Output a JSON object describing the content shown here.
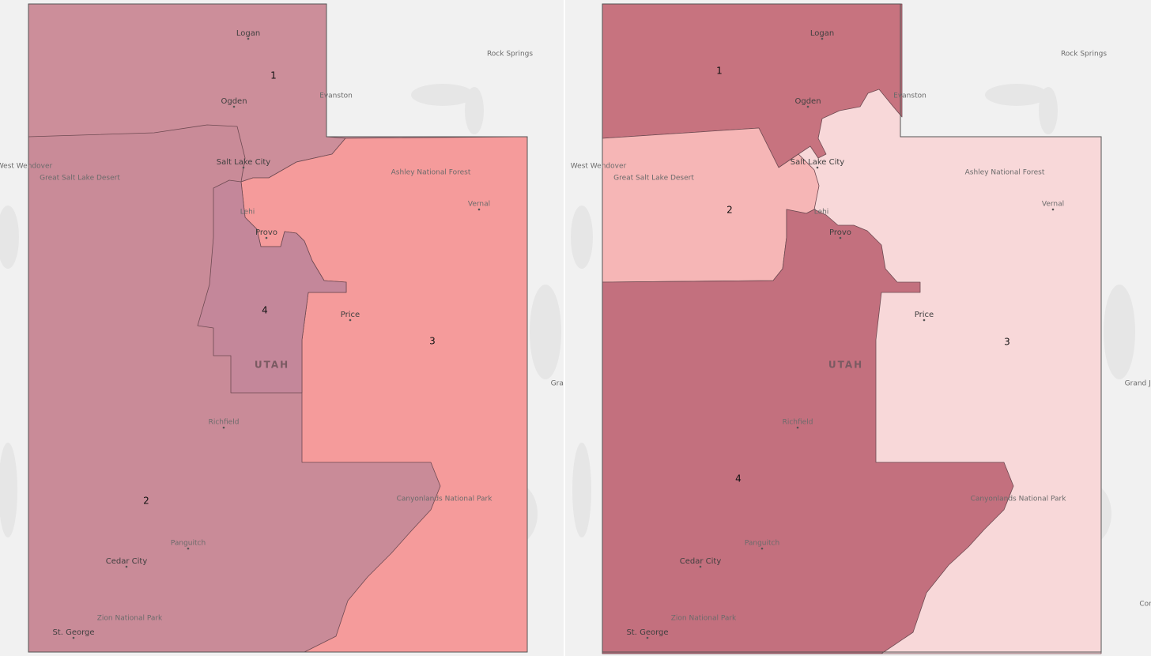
{
  "maps": [
    {
      "districts": [
        {
          "label": "1"
        },
        {
          "label": "2"
        },
        {
          "label": "3"
        },
        {
          "label": "4"
        }
      ],
      "state_label": "UTAH",
      "places": [
        {
          "name": "Logan"
        },
        {
          "name": "Ogden"
        },
        {
          "name": "Salt Lake City"
        },
        {
          "name": "Lehi"
        },
        {
          "name": "Provo"
        },
        {
          "name": "Price"
        },
        {
          "name": "Richfield"
        },
        {
          "name": "Panguitch"
        },
        {
          "name": "Cedar City"
        },
        {
          "name": "Zion National Park"
        },
        {
          "name": "St. George"
        },
        {
          "name": "Canyonlands National Park"
        },
        {
          "name": "Ashley National Forest"
        },
        {
          "name": "Vernal"
        },
        {
          "name": "Evanston"
        },
        {
          "name": "Rock Springs"
        },
        {
          "name": "West Wendover"
        },
        {
          "name": "Great Salt Lake Desert"
        },
        {
          "name": "Grand Junction"
        }
      ]
    },
    {
      "districts": [
        {
          "label": "1"
        },
        {
          "label": "2"
        },
        {
          "label": "3"
        },
        {
          "label": "4"
        }
      ],
      "state_label": "UTAH",
      "places": [
        {
          "name": "Logan"
        },
        {
          "name": "Ogden"
        },
        {
          "name": "Salt Lake City"
        },
        {
          "name": "Lehi"
        },
        {
          "name": "Provo"
        },
        {
          "name": "Price"
        },
        {
          "name": "Richfield"
        },
        {
          "name": "Panguitch"
        },
        {
          "name": "Cedar City"
        },
        {
          "name": "Zion National Park"
        },
        {
          "name": "St. George"
        },
        {
          "name": "Canyonlands National Park"
        },
        {
          "name": "Ashley National Forest"
        },
        {
          "name": "Vernal"
        },
        {
          "name": "Evanston"
        },
        {
          "name": "Rock Springs"
        },
        {
          "name": "West Wendover"
        },
        {
          "name": "Great Salt Lake Desert"
        },
        {
          "name": "Grand Junction"
        },
        {
          "name": "Cortez"
        }
      ]
    }
  ]
}
